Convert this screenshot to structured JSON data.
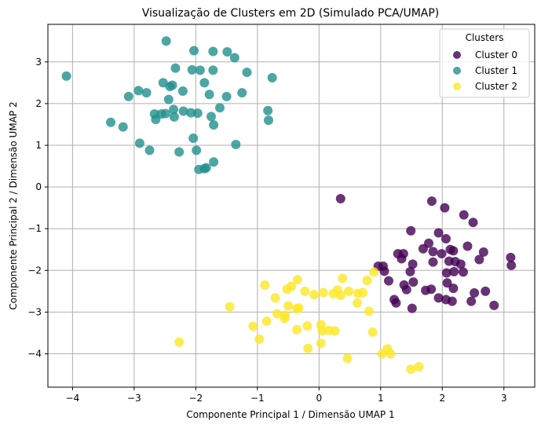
{
  "chart_data": {
    "type": "scatter",
    "title": "Visualização de Clusters em 2D (Simulado PCA/UMAP)",
    "xlabel": "Componente Principal 1 / Dimensão UMAP 1",
    "ylabel": "Componente Principal 2 / Dimensão UMAP 2",
    "xlim": [
      -4.4,
      3.5
    ],
    "ylim": [
      -4.8,
      3.9
    ],
    "xticks": [
      -4,
      -3,
      -2,
      -1,
      0,
      1,
      2,
      3
    ],
    "yticks": [
      -4,
      -3,
      -2,
      -1,
      0,
      1,
      2,
      3
    ],
    "grid": true,
    "legend": {
      "title": "Clusters",
      "placement": "top-right"
    },
    "series": [
      {
        "name": "Cluster 0",
        "color": "#440154",
        "points": [
          [
            0.35,
            -0.28
          ],
          [
            1.83,
            -0.34
          ],
          [
            2.04,
            -0.5
          ],
          [
            2.35,
            -0.67
          ],
          [
            2.5,
            -0.85
          ],
          [
            1.94,
            -1.1
          ],
          [
            1.49,
            -1.05
          ],
          [
            2.06,
            -1.24
          ],
          [
            1.78,
            -1.35
          ],
          [
            2.41,
            -1.42
          ],
          [
            0.96,
            -1.9
          ],
          [
            1.28,
            -1.6
          ],
          [
            1.37,
            -1.6
          ],
          [
            1.69,
            -1.48
          ],
          [
            1.85,
            -1.55
          ],
          [
            2.13,
            -1.5
          ],
          [
            2.18,
            -1.53
          ],
          [
            1.99,
            -1.6
          ],
          [
            2.6,
            -1.74
          ],
          [
            2.67,
            -1.56
          ],
          [
            1.34,
            -1.72
          ],
          [
            1.52,
            -1.85
          ],
          [
            1.85,
            -1.8
          ],
          [
            2.11,
            -1.78
          ],
          [
            2.21,
            -1.79
          ],
          [
            2.3,
            -1.85
          ],
          [
            3.11,
            -1.69
          ],
          [
            3.12,
            -1.88
          ],
          [
            1.04,
            -1.9
          ],
          [
            1.06,
            -2.02
          ],
          [
            1.13,
            -2.25
          ],
          [
            1.48,
            -2.03
          ],
          [
            1.53,
            -2.28
          ],
          [
            2.07,
            -2.06
          ],
          [
            2.19,
            -2.03
          ],
          [
            2.34,
            -2.04
          ],
          [
            1.38,
            -2.35
          ],
          [
            1.42,
            -2.46
          ],
          [
            1.73,
            -2.48
          ],
          [
            1.82,
            -2.45
          ],
          [
            2.08,
            -2.3
          ],
          [
            2.18,
            -2.43
          ],
          [
            2.52,
            -2.54
          ],
          [
            2.7,
            -2.5
          ],
          [
            1.22,
            -2.7
          ],
          [
            1.25,
            -2.78
          ],
          [
            1.51,
            -2.91
          ],
          [
            1.94,
            -2.66
          ],
          [
            2.06,
            -2.7
          ],
          [
            2.16,
            -2.74
          ],
          [
            2.47,
            -2.74
          ],
          [
            2.84,
            -2.84
          ]
        ]
      },
      {
        "name": "Cluster 1",
        "color": "#21908d",
        "points": [
          [
            -2.48,
            3.5
          ],
          [
            -2.03,
            3.27
          ],
          [
            -1.72,
            3.25
          ],
          [
            -1.49,
            3.24
          ],
          [
            -1.37,
            3.1
          ],
          [
            -4.1,
            2.66
          ],
          [
            -2.33,
            2.85
          ],
          [
            -2.06,
            2.81
          ],
          [
            -1.93,
            2.8
          ],
          [
            -1.72,
            2.8
          ],
          [
            -1.17,
            2.75
          ],
          [
            -0.76,
            2.62
          ],
          [
            -2.53,
            2.5
          ],
          [
            -2.38,
            2.44
          ],
          [
            -2.42,
            2.41
          ],
          [
            -1.86,
            2.5
          ],
          [
            -1.5,
            2.17
          ],
          [
            -1.25,
            2.26
          ],
          [
            -2.93,
            2.31
          ],
          [
            -2.8,
            2.26
          ],
          [
            -3.09,
            2.17
          ],
          [
            -2.21,
            2.3
          ],
          [
            -1.78,
            2.22
          ],
          [
            -2.44,
            2.1
          ],
          [
            -1.61,
            1.9
          ],
          [
            -0.83,
            1.83
          ],
          [
            -2.67,
            1.75
          ],
          [
            -2.56,
            1.75
          ],
          [
            -2.49,
            1.76
          ],
          [
            -2.36,
            1.86
          ],
          [
            -2.35,
            1.68
          ],
          [
            -2.2,
            1.82
          ],
          [
            -2.08,
            1.78
          ],
          [
            -1.97,
            1.77
          ],
          [
            -1.75,
            1.69
          ],
          [
            -3.38,
            1.55
          ],
          [
            -3.18,
            1.44
          ],
          [
            -2.65,
            1.62
          ],
          [
            -0.82,
            1.6
          ],
          [
            -1.71,
            1.49
          ],
          [
            -2.91,
            1.05
          ],
          [
            -2.75,
            0.88
          ],
          [
            -2.27,
            0.84
          ],
          [
            -1.99,
            0.88
          ],
          [
            -2.04,
            1.17
          ],
          [
            -1.35,
            1.02
          ],
          [
            -1.71,
            0.6
          ],
          [
            -1.83,
            0.46
          ],
          [
            -1.86,
            0.44
          ],
          [
            -1.95,
            0.42
          ]
        ]
      },
      {
        "name": "Cluster 2",
        "color": "#fde725",
        "points": [
          [
            0.38,
            -2.19
          ],
          [
            0.78,
            -2.24
          ],
          [
            0.89,
            -2.04
          ],
          [
            -0.35,
            -2.22
          ],
          [
            -0.45,
            -2.38
          ],
          [
            -0.52,
            -2.45
          ],
          [
            -0.88,
            -2.35
          ],
          [
            -0.23,
            -2.5
          ],
          [
            -0.08,
            -2.58
          ],
          [
            0.07,
            -2.53
          ],
          [
            0.23,
            -2.56
          ],
          [
            0.3,
            -2.47
          ],
          [
            0.35,
            -2.6
          ],
          [
            0.48,
            -2.5
          ],
          [
            0.63,
            -2.55
          ],
          [
            0.71,
            -2.53
          ],
          [
            -0.71,
            -2.66
          ],
          [
            -0.5,
            -2.85
          ],
          [
            -0.36,
            -2.92
          ],
          [
            -0.33,
            -2.9
          ],
          [
            -1.45,
            -2.87
          ],
          [
            0.62,
            -2.78
          ],
          [
            -0.68,
            -3.04
          ],
          [
            -0.55,
            -3.08
          ],
          [
            0.81,
            -2.98
          ],
          [
            -0.56,
            -3.15
          ],
          [
            -0.85,
            -3.22
          ],
          [
            -1.07,
            -3.34
          ],
          [
            -0.19,
            -3.33
          ],
          [
            -0.36,
            -3.42
          ],
          [
            0.03,
            -3.3
          ],
          [
            0.16,
            -3.44
          ],
          [
            0.26,
            -3.45
          ],
          [
            0.05,
            -3.45
          ],
          [
            0.87,
            -3.48
          ],
          [
            -0.97,
            -3.65
          ],
          [
            0.03,
            -3.75
          ],
          [
            -0.18,
            -3.87
          ],
          [
            -2.27,
            -3.72
          ],
          [
            0.46,
            -4.11
          ],
          [
            1.02,
            -4.0
          ],
          [
            1.11,
            -3.88
          ],
          [
            1.16,
            -4.0
          ],
          [
            1.49,
            -4.37
          ],
          [
            1.62,
            -4.31
          ]
        ]
      }
    ]
  }
}
